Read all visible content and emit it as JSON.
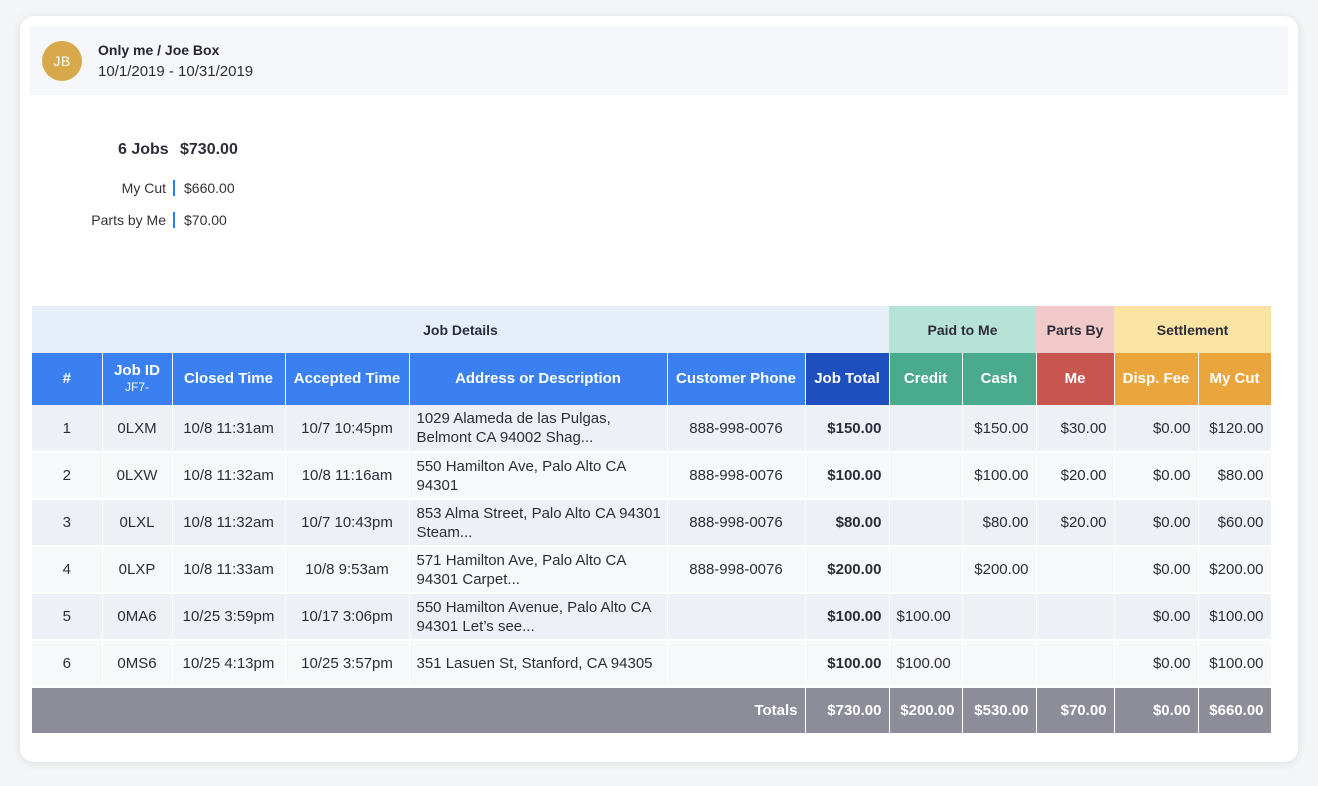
{
  "header": {
    "initials": "JB",
    "title": "Only me / Joe Box",
    "date_range": "10/1/2019 - 10/31/2019"
  },
  "summary": {
    "jobs": "6 Jobs",
    "total": "$730.00",
    "my_cut_label": "My Cut",
    "my_cut_value": "$660.00",
    "parts_label": "Parts by Me",
    "parts_value": "$70.00"
  },
  "table": {
    "groups": {
      "job_details": "Job Details",
      "paid_to_me": "Paid to Me",
      "parts_by": "Parts By",
      "settlement": "Settlement"
    },
    "columns": {
      "num": "#",
      "job_id": "Job ID",
      "job_id_prefix": "JF7-",
      "closed": "Closed Time",
      "accepted": "Accepted Time",
      "address": "Address or Description",
      "phone": "Customer Phone",
      "job_total": "Job Total",
      "credit": "Credit",
      "cash": "Cash",
      "me": "Me",
      "disp_fee": "Disp. Fee",
      "my_cut": "My Cut"
    },
    "rows": [
      {
        "num": "1",
        "job_id": "0LXM",
        "closed": "10/8 11:31am",
        "accepted": "10/7 10:45pm",
        "address": "1029 Alameda de las Pulgas, Belmont CA 94002 Shag...",
        "phone": "888-998-0076",
        "job_total": "$150.00",
        "credit": "",
        "cash": "$150.00",
        "me": "$30.00",
        "disp_fee": "$0.00",
        "my_cut": "$120.00"
      },
      {
        "num": "2",
        "job_id": "0LXW",
        "closed": "10/8 11:32am",
        "accepted": "10/8 11:16am",
        "address": "550 Hamilton Ave, Palo Alto CA 94301",
        "phone": "888-998-0076",
        "job_total": "$100.00",
        "credit": "",
        "cash": "$100.00",
        "me": "$20.00",
        "disp_fee": "$0.00",
        "my_cut": "$80.00"
      },
      {
        "num": "3",
        "job_id": "0LXL",
        "closed": "10/8 11:32am",
        "accepted": "10/7 10:43pm",
        "address": "853 Alma Street, Palo Alto CA 94301 Steam...",
        "phone": "888-998-0076",
        "job_total": "$80.00",
        "credit": "",
        "cash": "$80.00",
        "me": "$20.00",
        "disp_fee": "$0.00",
        "my_cut": "$60.00"
      },
      {
        "num": "4",
        "job_id": "0LXP",
        "closed": "10/8 11:33am",
        "accepted": "10/8 9:53am",
        "address": "571 Hamilton Ave, Palo Alto CA 94301 Carpet...",
        "phone": "888-998-0076",
        "job_total": "$200.00",
        "credit": "",
        "cash": "$200.00",
        "me": "",
        "disp_fee": "$0.00",
        "my_cut": "$200.00"
      },
      {
        "num": "5",
        "job_id": "0MA6",
        "closed": "10/25 3:59pm",
        "accepted": "10/17 3:06pm",
        "address": "550 Hamilton Avenue, Palo Alto CA 94301 Let’s see...",
        "phone": "",
        "job_total": "$100.00",
        "credit": "$100.00",
        "cash": "",
        "me": "",
        "disp_fee": "$0.00",
        "my_cut": "$100.00"
      },
      {
        "num": "6",
        "job_id": "0MS6",
        "closed": "10/25 4:13pm",
        "accepted": "10/25 3:57pm",
        "address": "351 Lasuen St, Stanford, CA 94305",
        "phone": "",
        "job_total": "$100.00",
        "credit": "$100.00",
        "cash": "",
        "me": "",
        "disp_fee": "$0.00",
        "my_cut": "$100.00"
      }
    ],
    "totals": {
      "label": "Totals",
      "job_total": "$730.00",
      "credit": "$200.00",
      "cash": "$530.00",
      "me": "$70.00",
      "disp_fee": "$0.00",
      "my_cut": "$660.00"
    }
  },
  "colors": {
    "header_blue": "#3a80f0",
    "job_total_blue": "#1f4fbf",
    "paid_green": "#4aaa8c",
    "parts_red": "#c9554f",
    "settlement_orange": "#eaa63d",
    "totals_gray": "#8d8c99",
    "avatar_gold": "#d7a94b"
  }
}
